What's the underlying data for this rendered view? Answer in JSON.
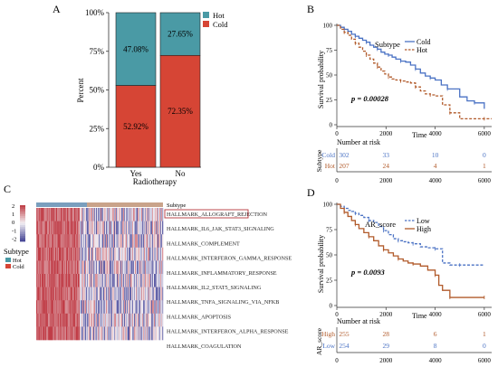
{
  "figure": {
    "panel_labels": [
      "A",
      "B",
      "C",
      "D"
    ]
  },
  "colors": {
    "hot": "#4a9aa5",
    "cold": "#d64535",
    "km_blue": "#4a72c4",
    "km_brown": "#b15a2a",
    "heat_red": "#c0444b",
    "heat_blue": "#4a4a98",
    "heat_white": "#f3f0f4",
    "subtype_bar": "#c9a38a",
    "subtype_bar_left": "#7a9fbe"
  },
  "chart_data": [
    {
      "type": "bar",
      "panel": "A",
      "stacked": true,
      "categories": [
        "Yes",
        "No"
      ],
      "series": [
        {
          "name": "Cold",
          "values": [
            52.92,
            72.35
          ]
        },
        {
          "name": "Hot",
          "values": [
            47.08,
            27.65
          ]
        }
      ],
      "data_labels": {
        "Yes": {
          "Hot": "47.08%",
          "Cold": "52.92%"
        },
        "No": {
          "Hot": "27.65%",
          "Cold": "72.35%"
        }
      },
      "xlabel": "Radiotherapy",
      "ylabel": "Percent",
      "ylim": [
        0,
        100
      ],
      "yticks": [
        "0%",
        "25%",
        "50%",
        "75%",
        "100%"
      ],
      "legend": {
        "position": "top-right",
        "entries": [
          "Hot",
          "Cold"
        ]
      }
    },
    {
      "type": "line",
      "panel": "B",
      "ylabel": "Survival probability",
      "xlabel": "Time",
      "xlim": [
        0,
        6000
      ],
      "ylim": [
        0,
        100
      ],
      "xticks": [
        0,
        2000,
        4000,
        6000
      ],
      "yticks": [
        0,
        25,
        50,
        75,
        100
      ],
      "legend": {
        "title": "Subtype",
        "position": "top-right",
        "entries": [
          "Cold",
          "Hot"
        ]
      },
      "annotation": "p = 0.00028",
      "series": [
        {
          "name": "Cold",
          "x": [
            0,
            150,
            300,
            450,
            600,
            750,
            900,
            1050,
            1200,
            1350,
            1500,
            1650,
            1800,
            1950,
            2100,
            2250,
            2400,
            2600,
            2800,
            3000,
            3200,
            3400,
            3600,
            3800,
            4000,
            4250,
            4500,
            5000,
            5300,
            5600,
            6000
          ],
          "y": [
            100,
            98,
            96,
            94,
            91,
            89,
            87,
            85,
            83,
            80,
            78,
            76,
            73,
            71,
            70,
            68,
            66,
            64,
            63,
            60,
            56,
            52,
            49,
            47,
            45,
            40,
            36,
            28,
            24,
            22,
            16
          ]
        },
        {
          "name": "Hot",
          "x": [
            0,
            150,
            300,
            450,
            600,
            750,
            900,
            1050,
            1200,
            1350,
            1500,
            1650,
            1800,
            1950,
            2100,
            2250,
            2400,
            2600,
            2800,
            3000,
            3200,
            3400,
            3600,
            3800,
            4000,
            4300,
            4600,
            5000,
            5500,
            6000,
            6300
          ],
          "y": [
            100,
            96,
            93,
            90,
            86,
            82,
            78,
            74,
            70,
            66,
            62,
            58,
            54,
            51,
            48,
            46,
            45,
            44,
            43,
            42,
            38,
            34,
            31,
            30,
            29,
            20,
            12,
            6,
            6,
            6,
            6
          ]
        }
      ],
      "risk_table": {
        "title": "Number at risk",
        "ylabel": "Subtype",
        "rows": [
          {
            "label": "Cold",
            "values": [
              302,
              33,
              10,
              0
            ]
          },
          {
            "label": "Hot",
            "values": [
              207,
              24,
              4,
              1
            ]
          }
        ],
        "xticks": [
          0,
          2000,
          4000,
          6000
        ],
        "xlabel": "Time"
      }
    },
    {
      "type": "heatmap",
      "panel": "C",
      "annotation_track": "Subtype",
      "legend": {
        "title": "Subtype",
        "entries": [
          "Hot",
          "Cold"
        ]
      },
      "colorbar_ticks": [
        "2",
        "1",
        "0",
        "-1",
        "-2"
      ],
      "rows": [
        "HALLMARK_ALLOGRAFT_REJECTION",
        "HALLMARK_IL6_JAK_STAT3_SIGNALING",
        "HALLMARK_COMPLEMENT",
        "HALLMARK_INTERFERON_GAMMA_RESPONSE",
        "HALLMARK_INFLAMMATORY_RESPONSE",
        "HALLMARK_IL2_STAT5_SIGNALING",
        "HALLMARK_TNFA_SIGNALING_VIA_NFKB",
        "HALLMARK_APOPTOSIS",
        "HALLMARK_INTERFERON_ALPHA_RESPONSE",
        "HALLMARK_COAGULATION"
      ],
      "highlighted_row": "HALLMARK_ALLOGRAFT_REJECTION",
      "hot_fraction": 0.34
    },
    {
      "type": "line",
      "panel": "D",
      "ylabel": "Survival probability",
      "xlabel": "Time",
      "xlim": [
        0,
        6000
      ],
      "ylim": [
        0,
        100
      ],
      "xticks": [
        0,
        2000,
        4000,
        6000
      ],
      "yticks": [
        0,
        25,
        50,
        75,
        100
      ],
      "legend": {
        "title": "AR_score",
        "position": "top-right",
        "entries": [
          "Low",
          "High"
        ]
      },
      "annotation": "p = 0.0093",
      "series": [
        {
          "name": "Low",
          "x": [
            0,
            150,
            300,
            450,
            600,
            750,
            900,
            1100,
            1300,
            1500,
            1700,
            1900,
            2100,
            2300,
            2500,
            2700,
            2900,
            3100,
            3400,
            3700,
            4000,
            4300,
            4600,
            5000,
            5500,
            6000
          ],
          "y": [
            100,
            98,
            96,
            94,
            93,
            91,
            89,
            87,
            84,
            82,
            78,
            74,
            70,
            66,
            64,
            63,
            62,
            61,
            58,
            57,
            56,
            42,
            40,
            40,
            40,
            40
          ]
        },
        {
          "name": "High",
          "x": [
            0,
            150,
            300,
            450,
            600,
            750,
            900,
            1100,
            1300,
            1500,
            1700,
            1900,
            2100,
            2300,
            2500,
            2700,
            2900,
            3100,
            3400,
            3700,
            4000,
            4150,
            4300,
            4600,
            5000,
            5500,
            6000
          ],
          "y": [
            100,
            96,
            92,
            88,
            84,
            80,
            76,
            72,
            68,
            64,
            59,
            55,
            52,
            49,
            46,
            44,
            42,
            41,
            39,
            35,
            30,
            20,
            15,
            8,
            8,
            8,
            8
          ]
        }
      ],
      "risk_table": {
        "title": "Number at risk",
        "ylabel": "AR_score",
        "rows": [
          {
            "label": "High",
            "values": [
              255,
              28,
              6,
              1
            ]
          },
          {
            "label": "Low",
            "values": [
              254,
              29,
              8,
              0
            ]
          }
        ],
        "xticks": [
          0,
          2000,
          4000,
          6000
        ],
        "xlabel": "Time"
      }
    }
  ]
}
